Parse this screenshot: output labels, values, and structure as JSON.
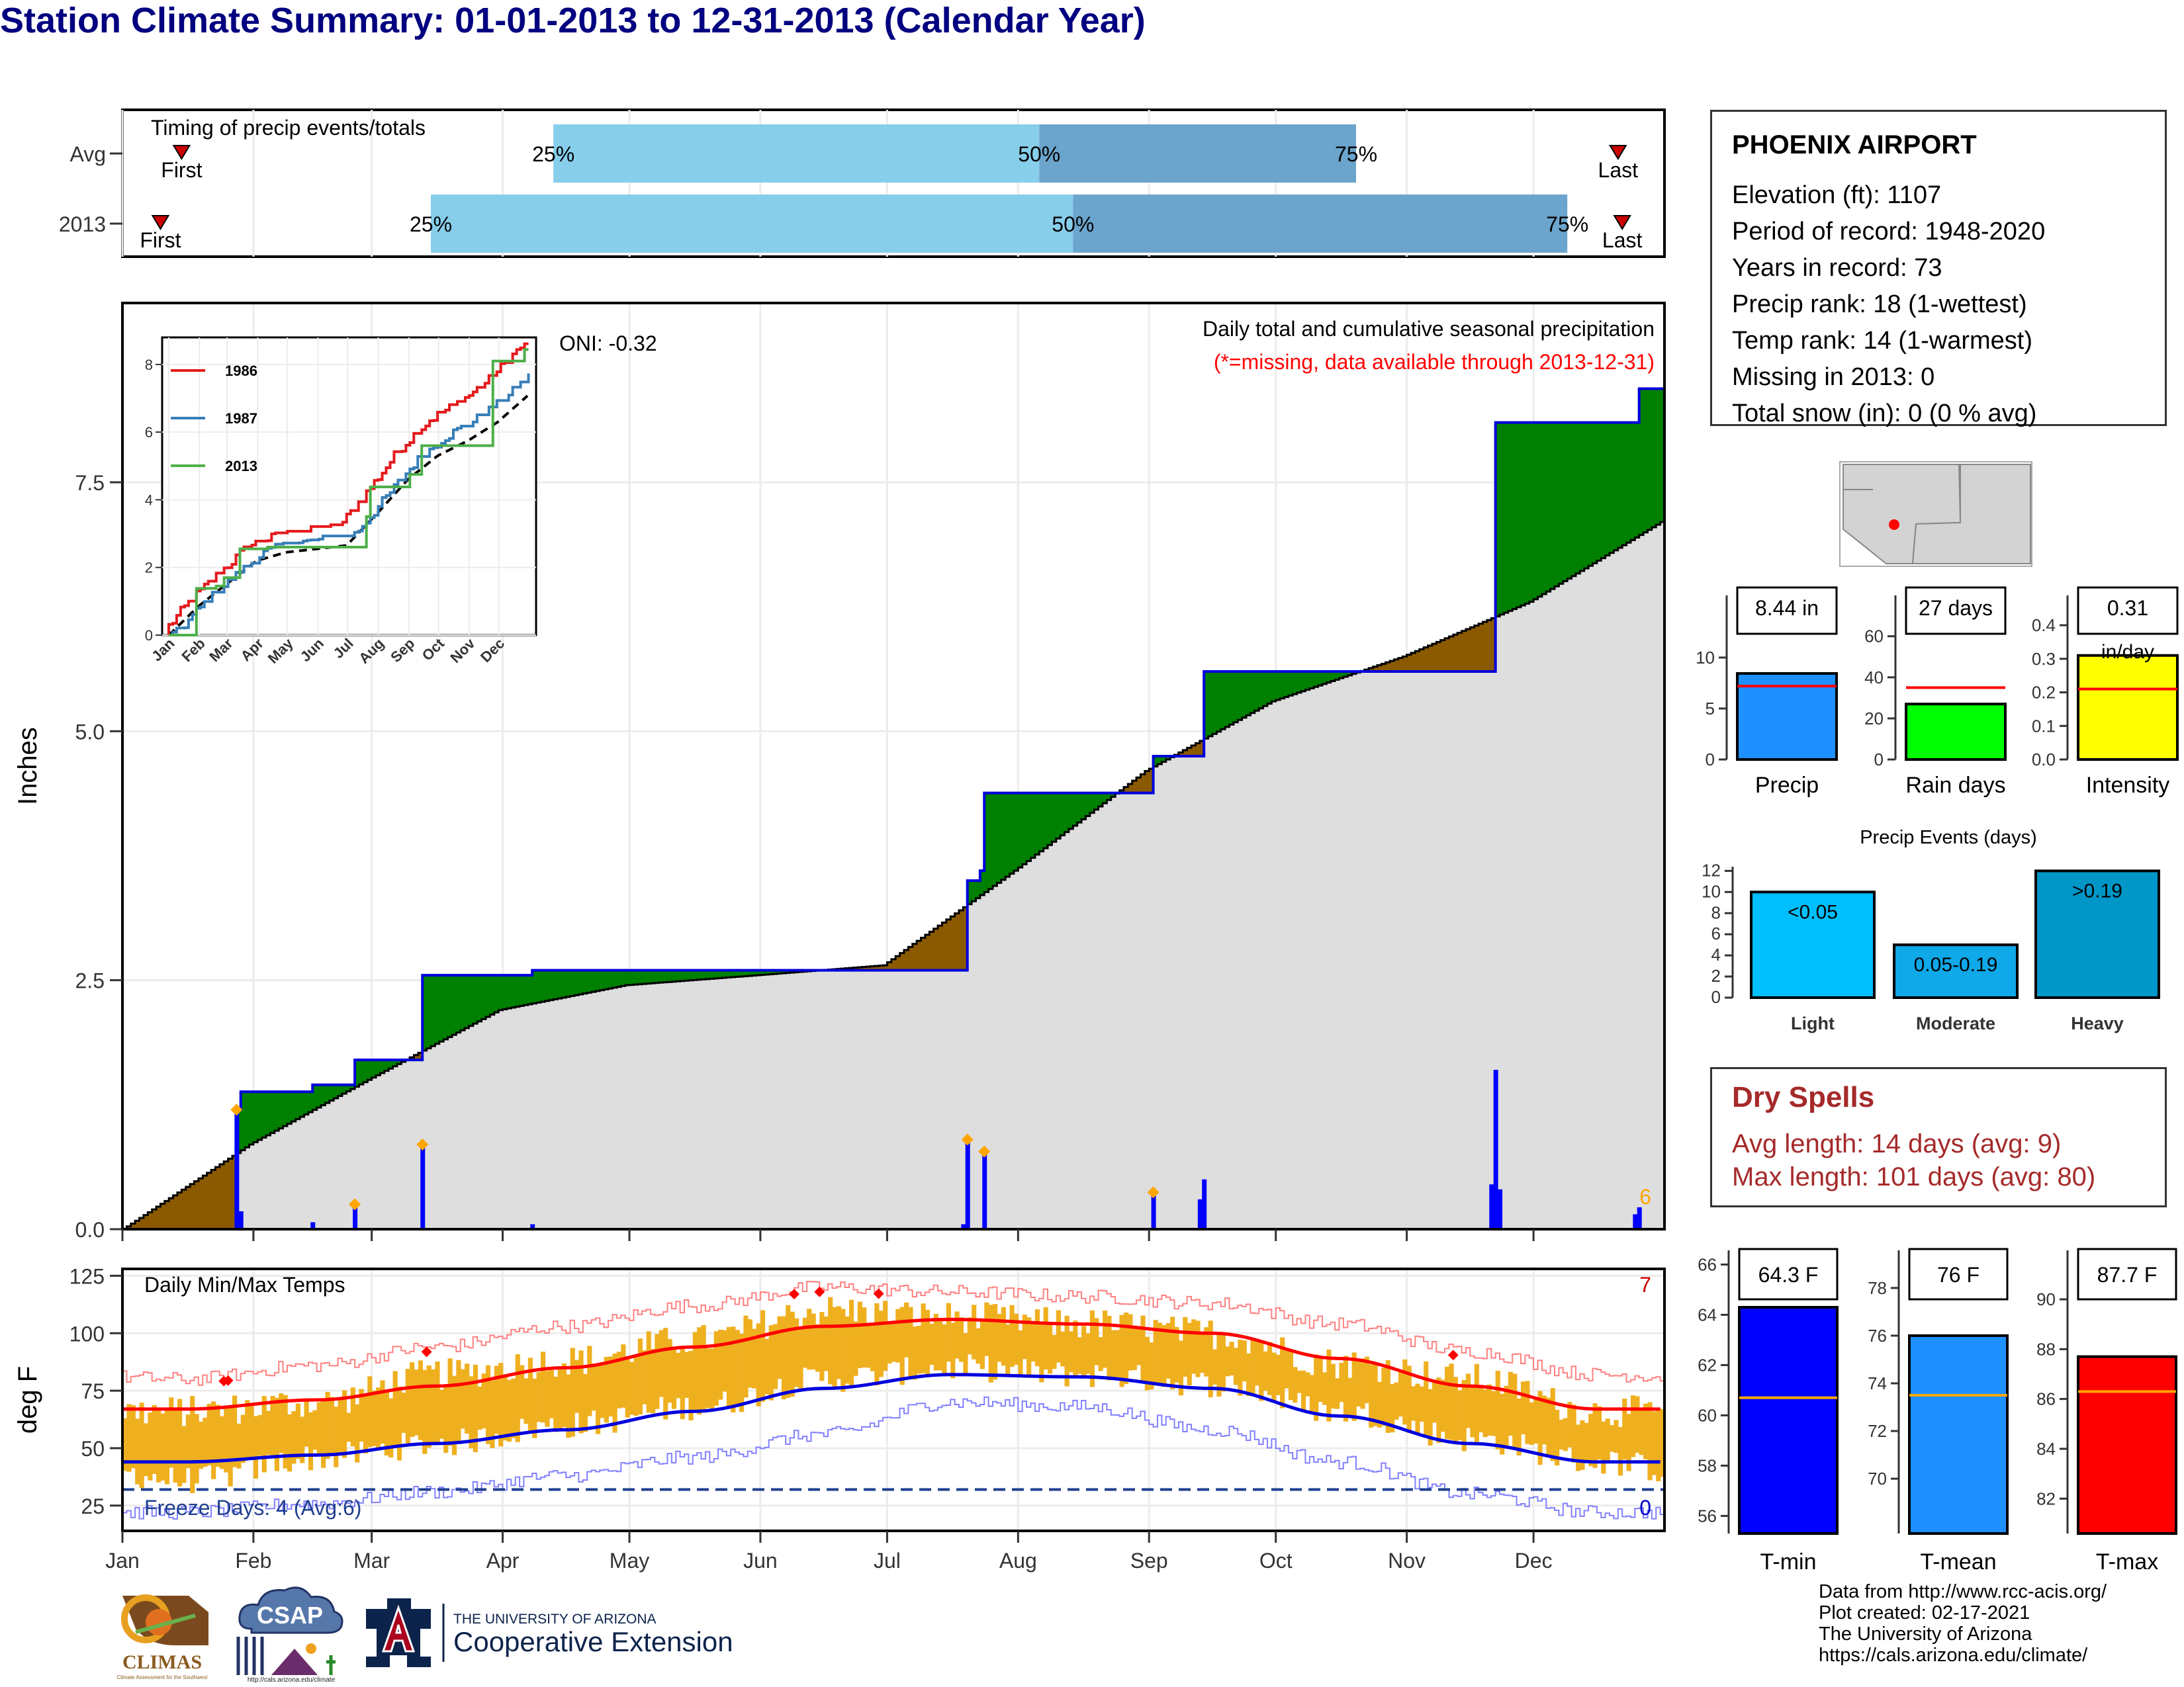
{
  "page": {
    "title": "Station Climate Summary: 01-01-2013 to 12-31-2013 (Calendar Year)"
  },
  "timing": {
    "label": "Timing of precip events/totals",
    "rows": [
      {
        "name": "Avg",
        "first_label": "First",
        "last_label": "Last",
        "first_doy": 15,
        "last_doy": 355,
        "q25_doy": 103,
        "q50_doy": 218,
        "q75_doy": 293
      },
      {
        "name": "2013",
        "first_label": "First",
        "last_label": "Last",
        "first_doy": 10,
        "last_doy": 356,
        "q25_doy": 74,
        "q50_doy": 226,
        "q75_doy": 343
      }
    ],
    "q_labels": [
      "25%",
      "50%",
      "75%"
    ],
    "colors": {
      "light": "#87ceeb",
      "dark": "#6ba4cc",
      "marker": "#cc0000"
    }
  },
  "precip_panel": {
    "ylabel": "Inches",
    "ticks": [
      "0.0",
      "2.5",
      "5.0",
      "7.5"
    ],
    "oni": "ONI: -0.32",
    "title": "Daily total and cumulative seasonal precipitation",
    "subtitle": "(*=missing, data available through 2013-12-31)",
    "extreme_count": "6",
    "colors": {
      "above": "#008000",
      "below": "#8b5a00",
      "avg_fill": "#dedede",
      "bars": "#0000ff",
      "line": "#0000dd",
      "marker": "#ffa500",
      "subtitle": "#ff0000",
      "count": "#ffa500"
    }
  },
  "inset": {
    "yticks": [
      "0",
      "2",
      "4",
      "6",
      "8"
    ],
    "months": [
      "Jan",
      "Feb",
      "Mar",
      "Apr",
      "May",
      "Jun",
      "Jul",
      "Aug",
      "Sep",
      "Oct",
      "Nov",
      "Dec"
    ],
    "legend": [
      {
        "name": "1986",
        "color": "#e41a1c"
      },
      {
        "name": "1987",
        "color": "#377eb8"
      },
      {
        "name": "2013",
        "color": "#4daf4a"
      }
    ]
  },
  "temp_panel": {
    "ylabel": "deg F",
    "ticks": [
      "25",
      "50",
      "75",
      "100",
      "125"
    ],
    "title": "Daily Min/Max Temps",
    "freeze_label": "Freeze Days: 4 (Avg:6)",
    "hot_count": "7",
    "cold_count": "0",
    "colors": {
      "bars": "#efb020",
      "max_avg": "#ff0000",
      "min_avg": "#0000dd",
      "max_rec": "#ff8080",
      "min_rec": "#8080ff",
      "freeze": "#1f3f8f",
      "marker": "#ff0000"
    }
  },
  "months": [
    "Jan",
    "Feb",
    "Mar",
    "Apr",
    "May",
    "Jun",
    "Jul",
    "Aug",
    "Sep",
    "Oct",
    "Nov",
    "Dec"
  ],
  "info": {
    "station": "PHOENIX AIRPORT",
    "lines": [
      "Elevation (ft): 1107",
      "Period of record: 1948-2020",
      "Years in record: 73",
      "Precip rank: 18 (1-wettest)",
      "Temp rank: 14 (1-warmest)",
      "Missing in 2013: 0",
      "Total snow (in): 0 (0 % avg)"
    ]
  },
  "gauges": [
    {
      "label": "Precip",
      "value_text": "8.44 in",
      "value": 8.44,
      "avg": 7.2,
      "ymax": 13.5,
      "ticks": [
        "0",
        "5",
        "10"
      ],
      "tick_vals": [
        0,
        5,
        10
      ],
      "color": "#1e90ff",
      "avg_color": "#ff0000"
    },
    {
      "label": "Rain days",
      "value_text": "27 days",
      "value": 27,
      "avg": 35,
      "ymax": 67,
      "ticks": [
        "0",
        "20",
        "40",
        "60"
      ],
      "tick_vals": [
        0,
        20,
        40,
        60
      ],
      "color": "#00ff00",
      "avg_color": "#ff0000"
    },
    {
      "label": "Intensity",
      "value_text": "0.31",
      "value_text2": "in/day",
      "value": 0.31,
      "avg": 0.21,
      "ymax": 0.41,
      "ticks": [
        "0.0",
        "0.1",
        "0.2",
        "0.3",
        "0.4"
      ],
      "tick_vals": [
        0,
        0.1,
        0.2,
        0.3,
        0.4
      ],
      "color": "#ffff00",
      "avg_color": "#ff0000"
    }
  ],
  "events": {
    "title": "Precip Events (days)",
    "ticks": [
      "0",
      "2",
      "4",
      "6",
      "8",
      "10",
      "12"
    ],
    "bars": [
      {
        "label": "Light",
        "text": "<0.05",
        "value": 10,
        "color": "#00bfff"
      },
      {
        "label": "Moderate",
        "text": "0.05-0.19",
        "value": 5,
        "color": "#0fa8e8"
      },
      {
        "label": "Heavy",
        "text": ">0.19",
        "value": 12,
        "color": "#0096c8"
      }
    ]
  },
  "dry_spells": {
    "title": "Dry Spells",
    "lines": [
      "Avg length: 14 days (avg: 9)",
      "Max length: 101 days (avg: 80)"
    ]
  },
  "temp_gauges": [
    {
      "label": "T-min",
      "value_text": "64.3 F",
      "value": 64.3,
      "avg": 60.7,
      "ymin": 55.3,
      "ymax": 66.3,
      "ticks": [
        "56",
        "58",
        "60",
        "62",
        "64",
        "66"
      ],
      "tick_vals": [
        56,
        58,
        60,
        62,
        64,
        66
      ],
      "color": "#0000ff",
      "avg_color": "#ffa500"
    },
    {
      "label": "T-mean",
      "value_text": "76 F",
      "value": 76.0,
      "avg": 73.5,
      "ymin": 67.7,
      "ymax": 79.3,
      "ticks": [
        "70",
        "72",
        "74",
        "76",
        "78"
      ],
      "tick_vals": [
        70,
        72,
        74,
        76,
        78
      ],
      "color": "#1e90ff",
      "avg_color": "#ffa500"
    },
    {
      "label": "T-max",
      "value_text": "87.7 F",
      "value": 87.7,
      "avg": 86.3,
      "ymin": 80.6,
      "ymax": 91.7,
      "ticks": [
        "82",
        "84",
        "86",
        "88",
        "90"
      ],
      "tick_vals": [
        82,
        84,
        86,
        88,
        90
      ],
      "color": "#ff0000",
      "avg_color": "#ffa500"
    }
  ],
  "credits": [
    "Data from http://www.rcc-acis.org/",
    "Plot created: 02-17-2021",
    "The University of Arizona",
    "https://cals.arizona.edu/climate/"
  ],
  "logos": {
    "climas": "CLIMAS",
    "climas_sub": "Climate Assessment for the Southwest",
    "csap": "CSAP",
    "csap_url": "http://cals.arizona.edu/climate",
    "ua_line1": "THE UNIVERSITY OF ARIZONA",
    "ua_line2": "Cooperative Extension"
  },
  "chart_data": [
    {
      "type": "bar",
      "title": "Timing of precip events/totals",
      "categories": [
        "Avg",
        "2013"
      ],
      "series": [
        {
          "name": "25%",
          "values": [
            "Apr-13",
            "Mar-15"
          ]
        },
        {
          "name": "50%",
          "values": [
            "Aug-06",
            "Aug-14"
          ]
        },
        {
          "name": "75%",
          "values": [
            "Oct-20",
            "Dec-09"
          ]
        }
      ]
    },
    {
      "type": "area",
      "title": "Daily total and cumulative seasonal precipitation",
      "ylabel": "Inches",
      "ylim": [
        0,
        9.3
      ],
      "xlabel": "",
      "cumulative_2013": [
        {
          "x": "2013-01-01",
          "y": 0.0
        },
        {
          "x": "2013-01-27",
          "y": 0.0
        },
        {
          "x": "2013-01-28",
          "y": 1.2
        },
        {
          "x": "2013-01-29",
          "y": 1.38
        },
        {
          "x": "2013-02-14",
          "y": 1.38
        },
        {
          "x": "2013-02-15",
          "y": 1.45
        },
        {
          "x": "2013-02-24",
          "y": 1.45
        },
        {
          "x": "2013-02-25",
          "y": 1.7
        },
        {
          "x": "2013-03-12",
          "y": 1.7
        },
        {
          "x": "2013-03-13",
          "y": 2.55
        },
        {
          "x": "2013-04-07",
          "y": 2.55
        },
        {
          "x": "2013-04-08",
          "y": 2.6
        },
        {
          "x": "2013-07-19",
          "y": 2.6
        },
        {
          "x": "2013-07-20",
          "y": 3.5
        },
        {
          "x": "2013-07-23",
          "y": 3.6
        },
        {
          "x": "2013-07-24",
          "y": 4.38
        },
        {
          "x": "2013-09-01",
          "y": 4.38
        },
        {
          "x": "2013-09-02",
          "y": 4.75
        },
        {
          "x": "2013-09-13",
          "y": 4.75
        },
        {
          "x": "2013-09-14",
          "y": 5.6
        },
        {
          "x": "2013-11-21",
          "y": 5.6
        },
        {
          "x": "2013-11-22",
          "y": 8.1
        },
        {
          "x": "2013-12-25",
          "y": 8.1
        },
        {
          "x": "2013-12-26",
          "y": 8.44
        },
        {
          "x": "2013-12-31",
          "y": 8.44
        }
      ],
      "cumulative_avg": [
        {
          "x": "2013-01-01",
          "y": 0.0
        },
        {
          "x": "2013-01-31",
          "y": 0.85
        },
        {
          "x": "2013-02-28",
          "y": 1.5
        },
        {
          "x": "2013-03-31",
          "y": 2.2
        },
        {
          "x": "2013-04-30",
          "y": 2.45
        },
        {
          "x": "2013-05-31",
          "y": 2.55
        },
        {
          "x": "2013-06-30",
          "y": 2.65
        },
        {
          "x": "2013-07-31",
          "y": 3.6
        },
        {
          "x": "2013-08-31",
          "y": 4.6
        },
        {
          "x": "2013-09-30",
          "y": 5.3
        },
        {
          "x": "2013-10-31",
          "y": 5.75
        },
        {
          "x": "2013-11-30",
          "y": 6.3
        },
        {
          "x": "2013-12-31",
          "y": 7.1
        }
      ],
      "daily_2013": [
        {
          "x": "2013-01-28",
          "y": 1.2
        },
        {
          "x": "2013-01-29",
          "y": 0.18
        },
        {
          "x": "2013-02-15",
          "y": 0.07
        },
        {
          "x": "2013-02-25",
          "y": 0.25
        },
        {
          "x": "2013-03-13",
          "y": 0.85
        },
        {
          "x": "2013-04-08",
          "y": 0.05
        },
        {
          "x": "2013-07-20",
          "y": 0.9
        },
        {
          "x": "2013-07-19",
          "y": 0.05
        },
        {
          "x": "2013-07-24",
          "y": 0.78
        },
        {
          "x": "2013-09-02",
          "y": 0.37
        },
        {
          "x": "2013-09-13",
          "y": 0.3
        },
        {
          "x": "2013-09-14",
          "y": 0.5
        },
        {
          "x": "2013-11-21",
          "y": 0.45
        },
        {
          "x": "2013-11-22",
          "y": 1.6
        },
        {
          "x": "2013-11-23",
          "y": 0.4
        },
        {
          "x": "2013-12-25",
          "y": 0.15
        },
        {
          "x": "2013-12-26",
          "y": 0.22
        }
      ]
    },
    {
      "type": "line",
      "title": "Daily Min/Max Temps",
      "ylabel": "deg F",
      "ylim": [
        14,
        128
      ],
      "x": [
        "Jan",
        "Feb",
        "Mar",
        "Apr",
        "May",
        "Jun",
        "Jul",
        "Aug",
        "Sep",
        "Oct",
        "Nov",
        "Dec"
      ],
      "series": [
        {
          "name": "avg max",
          "values": [
            67,
            71,
            77,
            85,
            94,
            103,
            106,
            104,
            100,
            89,
            77,
            67
          ]
        },
        {
          "name": "avg min",
          "values": [
            44,
            47,
            52,
            58,
            66,
            76,
            82,
            81,
            76,
            64,
            52,
            44
          ]
        },
        {
          "name": "record max",
          "values": [
            80,
            86,
            94,
            103,
            112,
            120,
            118,
            116,
            113,
            104,
            92,
            82
          ]
        },
        {
          "name": "record min",
          "values": [
            22,
            26,
            31,
            38,
            46,
            56,
            70,
            68,
            58,
            44,
            30,
            22
          ]
        },
        {
          "name": "2013 max",
          "values": [
            66,
            70,
            82,
            88,
            97,
            110,
            107,
            104,
            100,
            87,
            80,
            66
          ]
        },
        {
          "name": "2013 min",
          "values": [
            36,
            46,
            52,
            60,
            68,
            80,
            85,
            82,
            78,
            66,
            54,
            44
          ]
        }
      ]
    }
  ]
}
